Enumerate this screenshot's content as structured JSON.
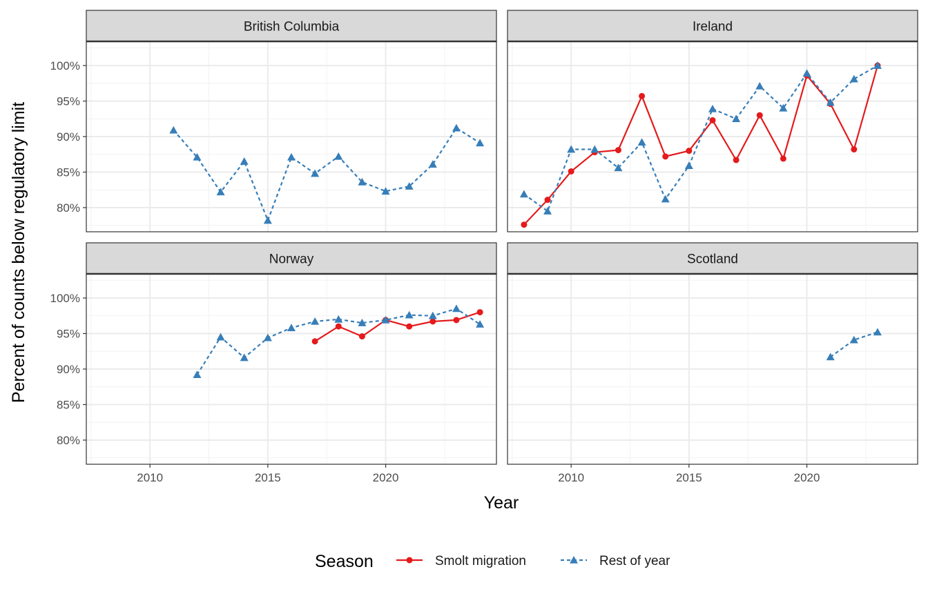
{
  "chart_data": {
    "type": "line",
    "xlabel": "Year",
    "ylabel": "Percent of counts below regulatory limit",
    "xlim": [
      2007.3,
      2024.7
    ],
    "ylim": [
      76.6,
      103.4
    ],
    "x_ticks": [
      2010,
      2015,
      2020
    ],
    "y_ticks": [
      80,
      85,
      90,
      95,
      100
    ],
    "y_tick_labels": [
      "80%",
      "85%",
      "90%",
      "95%",
      "100%"
    ],
    "grid": true,
    "legend": {
      "title": "Season",
      "position": "bottom",
      "entries": [
        {
          "name": "Smolt migration",
          "color": "#E41A1C",
          "marker": "circle",
          "line": "solid"
        },
        {
          "name": "Rest of year",
          "color": "#377EB8",
          "marker": "triangle",
          "line": "dashed"
        }
      ]
    },
    "panels": [
      {
        "name": "British Columbia",
        "series": [
          {
            "name": "Rest of year",
            "x": [
              2011,
              2012,
              2013,
              2014,
              2015,
              2016,
              2017,
              2018,
              2019,
              2020,
              2021,
              2022,
              2023,
              2024
            ],
            "y": [
              90.9,
              87.1,
              82.2,
              86.5,
              78.2,
              87.1,
              84.8,
              87.2,
              83.6,
              82.3,
              83.0,
              86.1,
              91.2,
              89.1
            ]
          }
        ]
      },
      {
        "name": "Ireland",
        "series": [
          {
            "name": "Smolt migration",
            "x": [
              2008,
              2009,
              2010,
              2011,
              2012,
              2013,
              2014,
              2015,
              2016,
              2017,
              2018,
              2019,
              2020,
              2021,
              2022,
              2023
            ],
            "y": [
              77.6,
              81.1,
              85.1,
              87.8,
              88.1,
              95.7,
              87.2,
              88.0,
              92.3,
              86.7,
              93.0,
              86.9,
              98.6,
              94.6,
              88.2,
              100.0
            ]
          },
          {
            "name": "Rest of year",
            "x": [
              2008,
              2009,
              2010,
              2011,
              2012,
              2013,
              2014,
              2015,
              2016,
              2017,
              2018,
              2019,
              2020,
              2021,
              2022,
              2023
            ],
            "y": [
              81.9,
              79.5,
              88.2,
              88.2,
              85.6,
              89.2,
              81.2,
              85.9,
              93.9,
              92.5,
              97.1,
              94.0,
              98.9,
              94.8,
              98.1,
              100.0
            ]
          }
        ]
      },
      {
        "name": "Norway",
        "series": [
          {
            "name": "Smolt migration",
            "x": [
              2017,
              2018,
              2019,
              2020,
              2021,
              2022,
              2023,
              2024
            ],
            "y": [
              93.9,
              96.0,
              94.6,
              96.9,
              96.0,
              96.7,
              96.9,
              98.0
            ]
          },
          {
            "name": "Rest of year",
            "x": [
              2012,
              2013,
              2014,
              2015,
              2016,
              2017,
              2018,
              2019,
              2020,
              2021,
              2022,
              2023,
              2024
            ],
            "y": [
              89.2,
              94.5,
              91.6,
              94.4,
              95.8,
              96.7,
              97.0,
              96.5,
              96.9,
              97.6,
              97.5,
              98.5,
              96.3
            ]
          }
        ]
      },
      {
        "name": "Scotland",
        "series": [
          {
            "name": "Rest of year",
            "x": [
              2021,
              2022,
              2023
            ],
            "y": [
              91.7,
              94.1,
              95.2
            ]
          }
        ]
      }
    ]
  }
}
